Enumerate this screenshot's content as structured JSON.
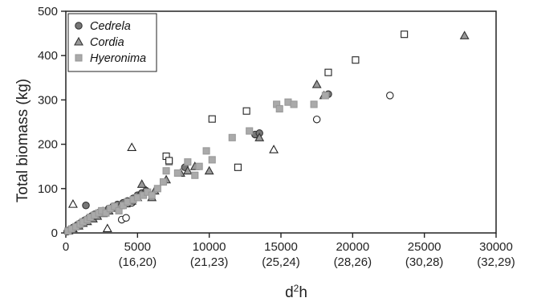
{
  "chart_data": {
    "type": "scatter",
    "xlabel": "d²h",
    "ylabel": "Total biomass (kg)",
    "xlim": [
      0,
      30000
    ],
    "ylim": [
      0,
      500
    ],
    "x_ticks": [
      {
        "value": 0,
        "label": "0",
        "sublabel": ""
      },
      {
        "value": 5000,
        "label": "5000",
        "sublabel": "(16,20)"
      },
      {
        "value": 10000,
        "label": "10000",
        "sublabel": "(21,23)"
      },
      {
        "value": 15000,
        "label": "15000",
        "sublabel": "(25,24)"
      },
      {
        "value": 20000,
        "label": "20000",
        "sublabel": "(28,26)"
      },
      {
        "value": 25000,
        "label": "25000",
        "sublabel": "(30,28)"
      },
      {
        "value": 30000,
        "label": "30000",
        "sublabel": "(32,29)"
      }
    ],
    "y_ticks": [
      0,
      100,
      200,
      300,
      400,
      500
    ],
    "grid": false,
    "legend": {
      "position": "top-left"
    },
    "series": [
      {
        "name": "Cedrela",
        "marker": "circle",
        "color": "#777777",
        "points": [
          [
            100,
            3
          ],
          [
            300,
            8
          ],
          [
            500,
            12
          ],
          [
            800,
            18
          ],
          [
            1000,
            22
          ],
          [
            1300,
            28
          ],
          [
            1600,
            34
          ],
          [
            1800,
            38
          ],
          [
            2000,
            42
          ],
          [
            2300,
            46
          ],
          [
            2600,
            50
          ],
          [
            3000,
            55
          ],
          [
            3300,
            60
          ],
          [
            3600,
            64
          ],
          [
            4000,
            68
          ],
          [
            4300,
            72
          ],
          [
            4700,
            78
          ],
          [
            5000,
            85
          ],
          [
            5300,
            90
          ],
          [
            5600,
            95
          ],
          [
            1400,
            62
          ],
          [
            8300,
            148
          ],
          [
            13200,
            222
          ],
          [
            13500,
            225
          ],
          [
            18300,
            313
          ]
        ],
        "open_points": [
          [
            3900,
            30
          ],
          [
            4200,
            34
          ],
          [
            4600,
            68
          ],
          [
            17500,
            256
          ],
          [
            22600,
            310
          ]
        ]
      },
      {
        "name": "Cordia",
        "marker": "triangle",
        "color": "#999999",
        "points": [
          [
            200,
            5
          ],
          [
            500,
            10
          ],
          [
            900,
            16
          ],
          [
            1200,
            22
          ],
          [
            1500,
            26
          ],
          [
            1900,
            32
          ],
          [
            2200,
            38
          ],
          [
            2600,
            44
          ],
          [
            3000,
            50
          ],
          [
            3400,
            56
          ],
          [
            3800,
            62
          ],
          [
            4200,
            66
          ],
          [
            4600,
            72
          ],
          [
            5000,
            80
          ],
          [
            5300,
            110
          ],
          [
            5600,
            95
          ],
          [
            6000,
            80
          ],
          [
            6200,
            95
          ],
          [
            7000,
            120
          ],
          [
            8000,
            135
          ],
          [
            8500,
            140
          ],
          [
            9000,
            150
          ],
          [
            10000,
            140
          ],
          [
            13500,
            215
          ],
          [
            17500,
            335
          ],
          [
            18000,
            310
          ],
          [
            27800,
            445
          ]
        ],
        "open_points": [
          [
            500,
            65
          ],
          [
            2900,
            10
          ],
          [
            4600,
            193
          ],
          [
            14500,
            188
          ]
        ]
      },
      {
        "name": "Hyeronima",
        "marker": "square",
        "color": "#aaaaaa",
        "points": [
          [
            150,
            4
          ],
          [
            400,
            9
          ],
          [
            700,
            14
          ],
          [
            1000,
            20
          ],
          [
            1200,
            25
          ],
          [
            1500,
            30
          ],
          [
            1700,
            35
          ],
          [
            2000,
            40
          ],
          [
            2300,
            45
          ],
          [
            2500,
            50
          ],
          [
            2800,
            45
          ],
          [
            3100,
            55
          ],
          [
            3400,
            60
          ],
          [
            3700,
            50
          ],
          [
            4000,
            62
          ],
          [
            4300,
            70
          ],
          [
            4700,
            75
          ],
          [
            5000,
            80
          ],
          [
            5400,
            85
          ],
          [
            5700,
            92
          ],
          [
            6000,
            85
          ],
          [
            6400,
            100
          ],
          [
            6800,
            115
          ],
          [
            7000,
            140
          ],
          [
            7200,
            160
          ],
          [
            7800,
            135
          ],
          [
            8500,
            160
          ],
          [
            9000,
            130
          ],
          [
            9300,
            150
          ],
          [
            9800,
            185
          ],
          [
            10200,
            165
          ],
          [
            11600,
            215
          ],
          [
            12800,
            230
          ],
          [
            14700,
            290
          ],
          [
            14900,
            280
          ],
          [
            15500,
            295
          ],
          [
            15900,
            290
          ],
          [
            17300,
            290
          ],
          [
            18100,
            310
          ]
        ],
        "open_points": [
          [
            7000,
            173
          ],
          [
            7200,
            163
          ],
          [
            10200,
            257
          ],
          [
            12000,
            148
          ],
          [
            12600,
            275
          ],
          [
            18300,
            362
          ],
          [
            20200,
            390
          ],
          [
            23600,
            448
          ]
        ]
      }
    ]
  }
}
